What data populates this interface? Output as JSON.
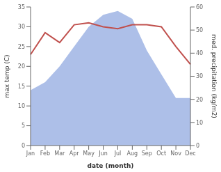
{
  "chart_data": {
    "type": "line",
    "xlabel": "date (month)",
    "ylabel": "max temp (C)",
    "y2label": "med. precipitation (kg/m2)",
    "categories": [
      "Jan",
      "Feb",
      "Mar",
      "Apr",
      "May",
      "Jun",
      "Jul",
      "Aug",
      "Sep",
      "Oct",
      "Nov",
      "Dec"
    ],
    "series": [
      {
        "type": "area",
        "color": "#adbfe8",
        "axis": "y2",
        "values": [
          24,
          27.428571428571427,
          34.285714285714285,
          42.857142857142854,
          51.42857142857143,
          56.57142857142857,
          58.285714285714285,
          54.857142857142854,
          41.142857142857146,
          30.857142857142858,
          20.571428571428573,
          20.571428571428573
        ]
      },
      {
        "type": "line",
        "color": "#c0504d",
        "values": [
          23,
          28.5,
          26,
          30.5,
          31,
          30,
          29.5,
          30.5,
          30.5,
          30,
          25,
          20.5
        ]
      }
    ],
    "ylim": [
      0,
      35
    ],
    "yticks": [
      0,
      5,
      10,
      15,
      20,
      25,
      30,
      35
    ],
    "y2lim": [
      0,
      60
    ],
    "y2ticks": [
      0,
      10,
      20,
      30,
      40,
      50,
      60
    ],
    "grid": false
  }
}
